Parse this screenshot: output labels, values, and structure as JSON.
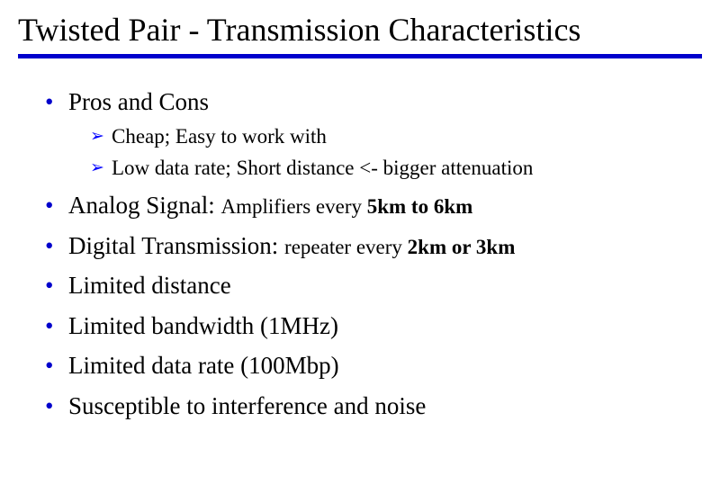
{
  "colors": {
    "bullet1": "#0000cc",
    "bullet2": "#0000ff",
    "rule": "#0000cc",
    "text": "#000000",
    "background": "#ffffff"
  },
  "title": "Twisted Pair - Transmission Characteristics",
  "bullets": {
    "b1": {
      "text": "Pros and Cons"
    },
    "b1_sub": {
      "s1": "Cheap;  Easy to work with",
      "s2": "Low data rate; Short distance <- bigger attenuation"
    },
    "b2": {
      "lead": "Analog Signal: ",
      "tail": "Amplifiers every ",
      "bold": "5km to 6km"
    },
    "b3": {
      "lead": "Digital Transmission: ",
      "tail": "repeater every ",
      "bold": "2km or 3km"
    },
    "b4": "Limited distance",
    "b5": "Limited bandwidth (1MHz)",
    "b6": "Limited data rate (100Mbp)",
    "b7": "Susceptible to interference and noise"
  }
}
